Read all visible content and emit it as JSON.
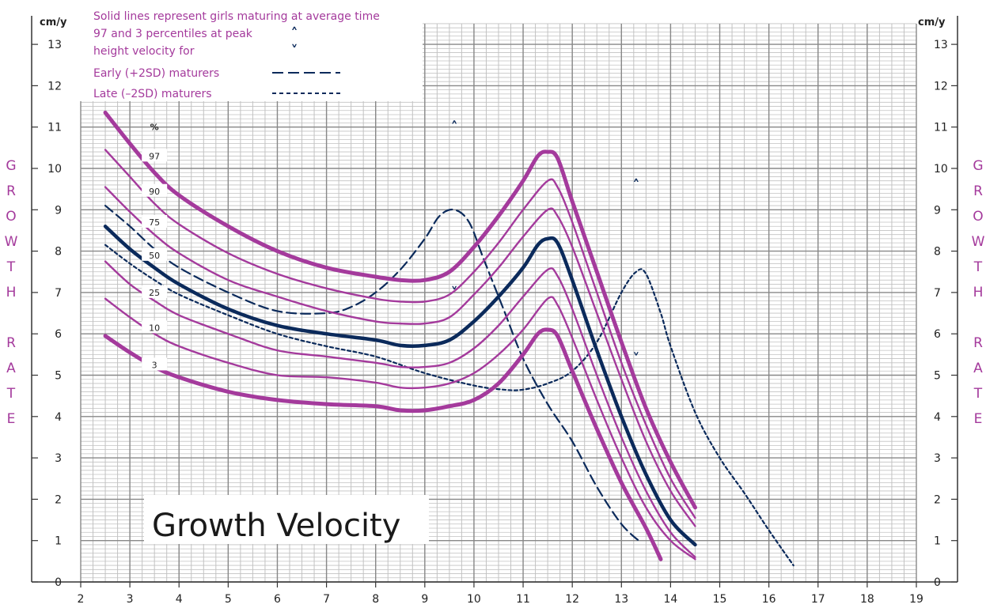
{
  "units": {
    "left": "cm/y",
    "right": "cm/y"
  },
  "side_title_left": [
    "G",
    "R",
    "O",
    "W",
    "T",
    "H",
    "",
    "R",
    "A",
    "T",
    "E"
  ],
  "side_title_right": [
    "G",
    "R",
    "O",
    "W",
    "T",
    "H",
    "",
    "R",
    "A",
    "T",
    "E"
  ],
  "legend": {
    "line1": "Solid lines represent girls maturing at average time",
    "line2": "97 and 3 percentiles at peak",
    "line3": "height velocity for",
    "early": "Early (+2SD) maturers",
    "late": "Late (–2SD) maturers",
    "up_mark": "˄",
    "down_mark": "˅"
  },
  "percentile_header": "%",
  "chart_title": "Growth Velocity",
  "colors": {
    "magenta": "#a43a9c",
    "navy": "#0b2a5b",
    "grid": "#888888",
    "grid_minor": "#c2c2c2"
  },
  "chart_data": {
    "type": "line",
    "title": "Growth Velocity",
    "xlabel": "",
    "ylabel": "cm/y",
    "xlim": [
      2,
      19
    ],
    "ylim": [
      0,
      13.5
    ],
    "x_ticks": [
      2,
      3,
      4,
      5,
      6,
      7,
      8,
      9,
      10,
      11,
      12,
      13,
      14,
      15,
      16,
      17,
      18,
      19
    ],
    "y_ticks": [
      0,
      1,
      2,
      3,
      4,
      5,
      6,
      7,
      8,
      9,
      10,
      11,
      12,
      13
    ],
    "grid": true,
    "legend_position": "top-left",
    "series": [
      {
        "name": "97",
        "style": "solid-thick",
        "label": "97",
        "points": [
          [
            2.5,
            11.35
          ],
          [
            3,
            10.6
          ],
          [
            3.5,
            9.9
          ],
          [
            4,
            9.35
          ],
          [
            5,
            8.6
          ],
          [
            6,
            8.0
          ],
          [
            7,
            7.6
          ],
          [
            8,
            7.38
          ],
          [
            8.5,
            7.3
          ],
          [
            9,
            7.3
          ],
          [
            9.5,
            7.5
          ],
          [
            10,
            8.1
          ],
          [
            10.5,
            8.85
          ],
          [
            11,
            9.7
          ],
          [
            11.3,
            10.3
          ],
          [
            11.5,
            10.4
          ],
          [
            11.7,
            10.25
          ],
          [
            12,
            9.2
          ],
          [
            12.5,
            7.5
          ],
          [
            13,
            5.8
          ],
          [
            13.5,
            4.2
          ],
          [
            14,
            2.9
          ],
          [
            14.5,
            1.8
          ]
        ]
      },
      {
        "name": "90",
        "style": "solid-thin",
        "label": "90",
        "points": [
          [
            2.5,
            10.45
          ],
          [
            3,
            9.8
          ],
          [
            3.5,
            9.15
          ],
          [
            4,
            8.65
          ],
          [
            5,
            7.95
          ],
          [
            6,
            7.45
          ],
          [
            7,
            7.1
          ],
          [
            8,
            6.85
          ],
          [
            8.5,
            6.78
          ],
          [
            9,
            6.78
          ],
          [
            9.5,
            6.95
          ],
          [
            10,
            7.5
          ],
          [
            10.5,
            8.2
          ],
          [
            11,
            9.0
          ],
          [
            11.5,
            9.7
          ],
          [
            11.7,
            9.55
          ],
          [
            12,
            8.7
          ],
          [
            12.5,
            7.0
          ],
          [
            13,
            5.3
          ],
          [
            13.5,
            3.8
          ],
          [
            14,
            2.5
          ],
          [
            14.5,
            1.55
          ]
        ]
      },
      {
        "name": "75",
        "style": "solid-thin",
        "label": "75",
        "points": [
          [
            2.5,
            9.55
          ],
          [
            3,
            8.95
          ],
          [
            3.5,
            8.4
          ],
          [
            4,
            7.95
          ],
          [
            5,
            7.3
          ],
          [
            6,
            6.9
          ],
          [
            7,
            6.55
          ],
          [
            8,
            6.3
          ],
          [
            8.5,
            6.25
          ],
          [
            9,
            6.25
          ],
          [
            9.5,
            6.4
          ],
          [
            10,
            6.95
          ],
          [
            10.5,
            7.6
          ],
          [
            11,
            8.35
          ],
          [
            11.5,
            9.0
          ],
          [
            11.7,
            8.85
          ],
          [
            12,
            8.1
          ],
          [
            12.5,
            6.5
          ],
          [
            13,
            4.9
          ],
          [
            13.5,
            3.4
          ],
          [
            14,
            2.2
          ],
          [
            14.5,
            1.35
          ]
        ]
      },
      {
        "name": "50",
        "style": "solid-navy",
        "label": "50",
        "points": [
          [
            2.5,
            8.6
          ],
          [
            3,
            8.05
          ],
          [
            3.5,
            7.6
          ],
          [
            4,
            7.2
          ],
          [
            5,
            6.6
          ],
          [
            6,
            6.2
          ],
          [
            7,
            6.0
          ],
          [
            8,
            5.85
          ],
          [
            8.5,
            5.72
          ],
          [
            9,
            5.72
          ],
          [
            9.5,
            5.85
          ],
          [
            10,
            6.3
          ],
          [
            10.5,
            6.9
          ],
          [
            11,
            7.6
          ],
          [
            11.3,
            8.15
          ],
          [
            11.5,
            8.3
          ],
          [
            11.7,
            8.2
          ],
          [
            12,
            7.3
          ],
          [
            12.5,
            5.6
          ],
          [
            13,
            4.0
          ],
          [
            13.5,
            2.6
          ],
          [
            14,
            1.5
          ],
          [
            14.5,
            0.9
          ]
        ]
      },
      {
        "name": "25",
        "style": "solid-thin",
        "label": "25",
        "points": [
          [
            2.5,
            7.75
          ],
          [
            3,
            7.2
          ],
          [
            3.5,
            6.8
          ],
          [
            4,
            6.45
          ],
          [
            5,
            6.0
          ],
          [
            6,
            5.6
          ],
          [
            7,
            5.45
          ],
          [
            8,
            5.3
          ],
          [
            8.5,
            5.2
          ],
          [
            9,
            5.2
          ],
          [
            9.5,
            5.3
          ],
          [
            10,
            5.65
          ],
          [
            10.5,
            6.2
          ],
          [
            11,
            6.9
          ],
          [
            11.5,
            7.55
          ],
          [
            11.7,
            7.4
          ],
          [
            12,
            6.6
          ],
          [
            12.5,
            5.0
          ],
          [
            13,
            3.5
          ],
          [
            13.5,
            2.2
          ],
          [
            14,
            1.2
          ],
          [
            14.5,
            0.6
          ]
        ]
      },
      {
        "name": "10",
        "style": "solid-thin",
        "label": "10",
        "points": [
          [
            2.5,
            6.85
          ],
          [
            3,
            6.4
          ],
          [
            3.5,
            6.0
          ],
          [
            4,
            5.7
          ],
          [
            5,
            5.3
          ],
          [
            6,
            5.0
          ],
          [
            7,
            4.95
          ],
          [
            8,
            4.82
          ],
          [
            8.5,
            4.7
          ],
          [
            9,
            4.7
          ],
          [
            9.5,
            4.8
          ],
          [
            10,
            5.05
          ],
          [
            10.5,
            5.5
          ],
          [
            11,
            6.1
          ],
          [
            11.5,
            6.85
          ],
          [
            11.7,
            6.7
          ],
          [
            12,
            5.9
          ],
          [
            12.5,
            4.4
          ],
          [
            13,
            3.0
          ],
          [
            13.5,
            1.8
          ],
          [
            14,
            1.0
          ],
          [
            14.5,
            0.55
          ]
        ]
      },
      {
        "name": "3",
        "style": "solid-thick",
        "label": "3",
        "points": [
          [
            2.5,
            5.95
          ],
          [
            3,
            5.55
          ],
          [
            3.5,
            5.2
          ],
          [
            4,
            4.95
          ],
          [
            5,
            4.6
          ],
          [
            6,
            4.4
          ],
          [
            7,
            4.3
          ],
          [
            8,
            4.25
          ],
          [
            8.5,
            4.15
          ],
          [
            9,
            4.15
          ],
          [
            9.5,
            4.25
          ],
          [
            10,
            4.4
          ],
          [
            10.5,
            4.8
          ],
          [
            11,
            5.5
          ],
          [
            11.3,
            6.0
          ],
          [
            11.5,
            6.1
          ],
          [
            11.7,
            5.95
          ],
          [
            12,
            5.1
          ],
          [
            12.5,
            3.7
          ],
          [
            13,
            2.4
          ],
          [
            13.5,
            1.3
          ],
          [
            13.8,
            0.55
          ]
        ]
      },
      {
        "name": "Early (+2SD) maturers",
        "style": "dashed-long",
        "points": [
          [
            2.5,
            9.1
          ],
          [
            3,
            8.6
          ],
          [
            3.5,
            8.05
          ],
          [
            4,
            7.6
          ],
          [
            5,
            7.0
          ],
          [
            6,
            6.55
          ],
          [
            7,
            6.5
          ],
          [
            7.5,
            6.65
          ],
          [
            8,
            7.0
          ],
          [
            8.5,
            7.55
          ],
          [
            9,
            8.3
          ],
          [
            9.3,
            8.85
          ],
          [
            9.6,
            9.0
          ],
          [
            9.9,
            8.7
          ],
          [
            10.2,
            7.8
          ],
          [
            10.6,
            6.6
          ],
          [
            11,
            5.4
          ],
          [
            11.5,
            4.3
          ],
          [
            12,
            3.4
          ],
          [
            12.5,
            2.3
          ],
          [
            13,
            1.4
          ],
          [
            13.4,
            0.95
          ]
        ]
      },
      {
        "name": "Late (–2SD) maturers",
        "style": "dashed-short",
        "points": [
          [
            2.5,
            8.15
          ],
          [
            3,
            7.7
          ],
          [
            3.5,
            7.3
          ],
          [
            4,
            6.95
          ],
          [
            5,
            6.45
          ],
          [
            6,
            6.0
          ],
          [
            7,
            5.7
          ],
          [
            8,
            5.45
          ],
          [
            9,
            5.05
          ],
          [
            10,
            4.75
          ],
          [
            10.6,
            4.65
          ],
          [
            11,
            4.65
          ],
          [
            11.5,
            4.8
          ],
          [
            12,
            5.1
          ],
          [
            12.5,
            5.8
          ],
          [
            13,
            7.0
          ],
          [
            13.3,
            7.5
          ],
          [
            13.5,
            7.45
          ],
          [
            13.8,
            6.5
          ],
          [
            14,
            5.7
          ],
          [
            14.5,
            4.1
          ],
          [
            15,
            3.0
          ],
          [
            15.5,
            2.15
          ],
          [
            16,
            1.25
          ],
          [
            16.5,
            0.4
          ]
        ]
      }
    ],
    "peak_markers": {
      "early": {
        "up": [
          9.6,
          11.0
        ],
        "down": [
          9.6,
          7.0
        ]
      },
      "late": {
        "up": [
          13.3,
          9.6
        ],
        "down": [
          13.3,
          5.4
        ]
      }
    }
  }
}
